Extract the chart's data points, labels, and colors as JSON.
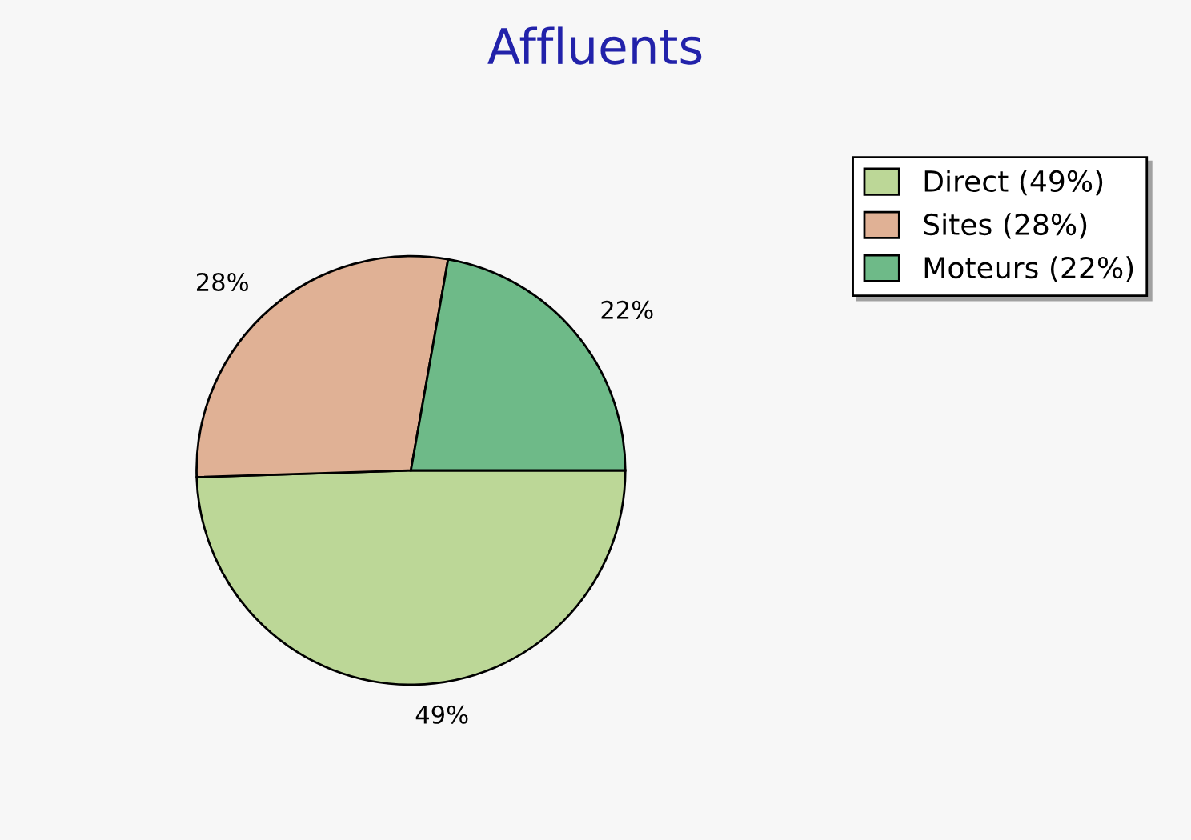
{
  "chart_data": {
    "type": "pie",
    "title": "Affluents",
    "categories": [
      "Direct (49%)",
      "Sites (28%)",
      "Moteurs (22%)"
    ],
    "values": [
      49,
      28,
      22
    ],
    "colors": [
      "#bcd797",
      "#e0b195",
      "#6eba88"
    ],
    "value_labels": [
      "49%",
      "28%",
      "22%"
    ],
    "legend": "top right"
  }
}
